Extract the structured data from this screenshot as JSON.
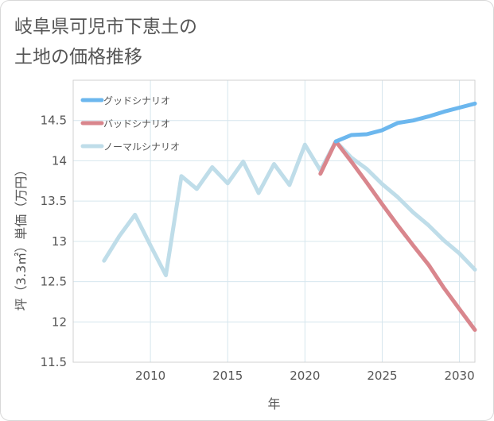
{
  "chart_data": {
    "type": "line",
    "title": "岐阜県可児市下恵土の\n土地の価格推移",
    "xlabel": "年",
    "ylabel": "坪（3.3㎡）単価（万円）",
    "xlim": [
      2005,
      2031
    ],
    "ylim": [
      11.5,
      15.0
    ],
    "xticks": [
      2010,
      2015,
      2020,
      2025,
      2030
    ],
    "yticks": [
      11.5,
      12,
      12.5,
      13,
      13.5,
      14,
      14.5
    ],
    "ytick_labels": [
      "11.5",
      "12",
      "12.5",
      "13",
      "13.5",
      "14",
      "14.5"
    ],
    "legend_position": "top-left",
    "series": [
      {
        "name": "グッドシナリオ",
        "color": "#6cb7ee",
        "x": [
          2022,
          2023,
          2024,
          2025,
          2026,
          2027,
          2028,
          2029,
          2030,
          2031
        ],
        "y": [
          14.24,
          14.32,
          14.33,
          14.38,
          14.47,
          14.5,
          14.55,
          14.61,
          14.66,
          14.71
        ]
      },
      {
        "name": "バッドシナリオ",
        "color": "#d9868d",
        "x": [
          2021,
          2022,
          2023,
          2024,
          2025,
          2026,
          2027,
          2028,
          2029,
          2030,
          2031
        ],
        "y": [
          13.84,
          14.24,
          13.99,
          13.73,
          13.46,
          13.2,
          12.95,
          12.71,
          12.42,
          12.16,
          11.9
        ]
      },
      {
        "name": "ノーマルシナリオ",
        "color": "#bfdde9",
        "x": [
          2007,
          2008,
          2009,
          2010,
          2011,
          2012,
          2013,
          2014,
          2015,
          2016,
          2017,
          2018,
          2019,
          2020,
          2021,
          2022,
          2023,
          2024,
          2025,
          2026,
          2027,
          2028,
          2029,
          2030,
          2031
        ],
        "y": [
          12.76,
          13.07,
          13.33,
          12.95,
          12.58,
          13.81,
          13.65,
          13.92,
          13.72,
          13.99,
          13.6,
          13.96,
          13.7,
          14.2,
          13.88,
          14.24,
          14.04,
          13.9,
          13.71,
          13.55,
          13.36,
          13.2,
          13.01,
          12.85,
          12.65
        ]
      }
    ]
  }
}
